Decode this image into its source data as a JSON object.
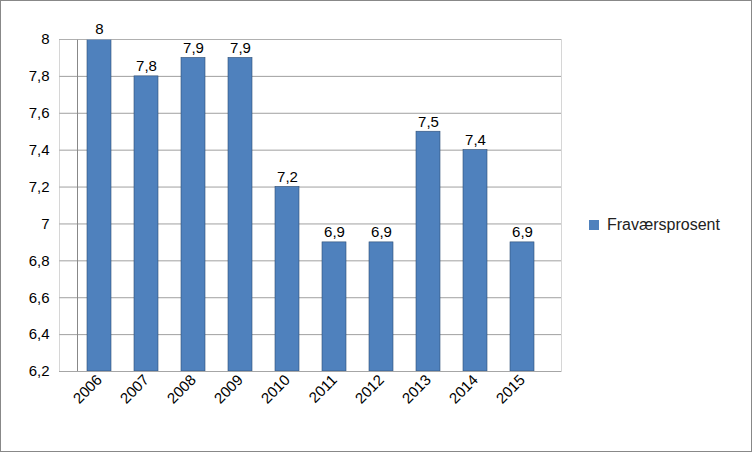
{
  "chart_data": {
    "type": "bar",
    "categories": [
      "2006",
      "2007",
      "2008",
      "2009",
      "2010",
      "2011",
      "2012",
      "2013",
      "2014",
      "2015"
    ],
    "series": [
      {
        "name": "Fraværsprosent",
        "color": "#4f81bd",
        "values": [
          8,
          7.8,
          7.9,
          7.9,
          7.2,
          6.9,
          6.9,
          7.5,
          7.4,
          6.9
        ],
        "value_labels": [
          "8",
          "7,8",
          "7,9",
          "7,9",
          "7,2",
          "6,9",
          "6,9",
          "7,5",
          "7,4",
          "6,9"
        ]
      }
    ],
    "ylim": [
      6.2,
      8
    ],
    "yticks": [
      {
        "value": 6.2,
        "label": "6,2"
      },
      {
        "value": 6.4,
        "label": "6,4"
      },
      {
        "value": 6.6,
        "label": "6,6"
      },
      {
        "value": 6.8,
        "label": "6,8"
      },
      7,
      {
        "value": 7.2,
        "label": "7,2"
      },
      {
        "value": 7.4,
        "label": "7,4"
      },
      {
        "value": 7.6,
        "label": "7,6"
      },
      {
        "value": 7.8,
        "label": "7,8"
      },
      8
    ],
    "grid": true,
    "data_labels": true,
    "legend": "right"
  }
}
